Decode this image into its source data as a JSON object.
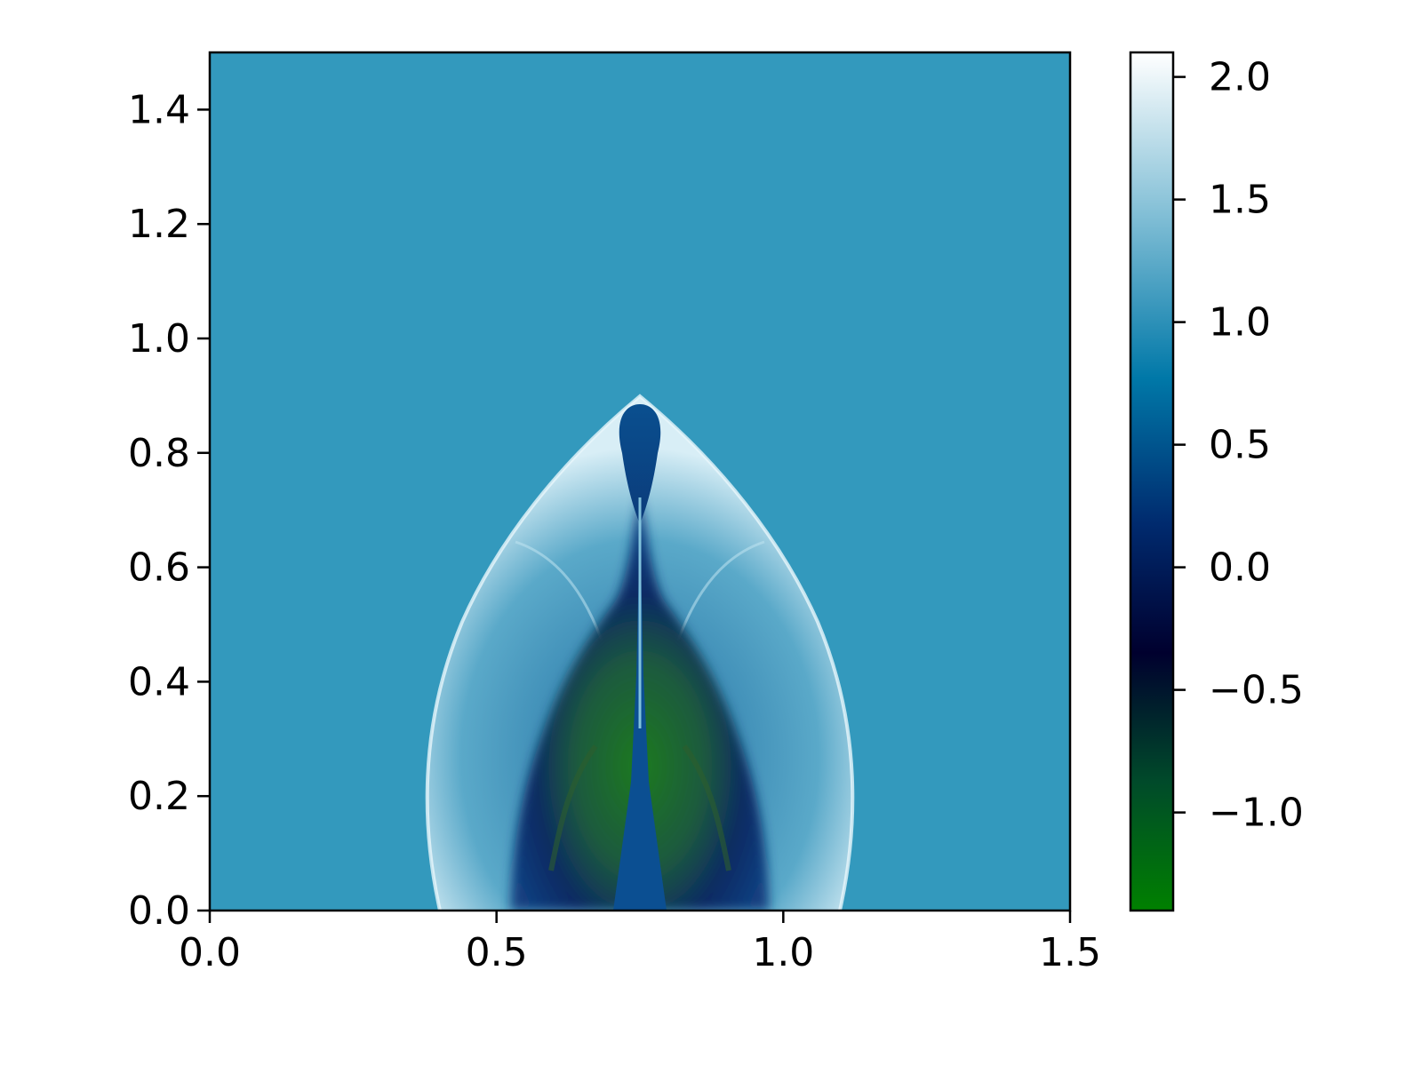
{
  "chart_data": {
    "type": "heatmap",
    "title": "",
    "xlabel": "",
    "ylabel": "",
    "xlim": [
      0.0,
      1.5
    ],
    "ylim": [
      0.0,
      1.5
    ],
    "x_ticks": [
      "0.0",
      "0.5",
      "1.0",
      "1.5"
    ],
    "y_ticks": [
      "0.0",
      "0.2",
      "0.4",
      "0.6",
      "0.8",
      "1.0",
      "1.2",
      "1.4"
    ],
    "grid": false,
    "background_value": 1.1,
    "colormap": "ocean",
    "colorbar": {
      "min": -1.4,
      "max": 2.1,
      "ticks": [
        "2.0",
        "1.5",
        "1.0",
        "0.5",
        "0.0",
        "−0.5",
        "−1.0"
      ],
      "colors": [
        "#008000",
        "#004a2a",
        "#00002e",
        "#002a6e",
        "#0078a8",
        "#88c2d8",
        "#ffffff"
      ]
    },
    "features": {
      "outer_bow_shock_apex": [
        0.75,
        0.9
      ],
      "outer_bow_shock_base_x": [
        0.4,
        1.11
      ],
      "jet_core_base_x": [
        0.7,
        0.8
      ],
      "cocoon_region_x": [
        0.55,
        0.95
      ],
      "cocoon_region_y": [
        0.0,
        0.5
      ]
    }
  }
}
